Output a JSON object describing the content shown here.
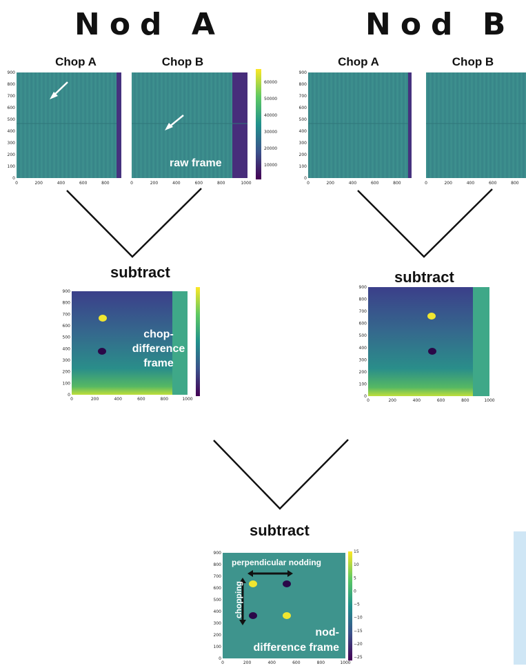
{
  "nod_a_title": "Nod A",
  "nod_b_title": "Nod B",
  "chop_a_label": "Chop A",
  "chop_b_label": "Chop B",
  "subtract_label": "subtract",
  "raw_frame_label": "raw frame",
  "chop_diff_label": [
    "chop-",
    "difference",
    "frame"
  ],
  "nod_diff_label": [
    "nod-",
    "difference frame"
  ],
  "perpendicular_label": "perpendicular nodding",
  "chopping_label": "chopping",
  "raw_y_ticks": [
    "0",
    "100",
    "200",
    "300",
    "400",
    "500",
    "600",
    "700",
    "800",
    "900"
  ],
  "raw_x_ticks_short": [
    "0",
    "200",
    "400",
    "600",
    "800"
  ],
  "raw_x_ticks_long": [
    "0",
    "200",
    "400",
    "600",
    "800",
    "1000"
  ],
  "raw_colorbar_ticks": [
    "10000",
    "20000",
    "30000",
    "40000",
    "50000",
    "60000"
  ],
  "diff_colorbar_ticks": [
    "15",
    "10",
    "5",
    "0",
    "−5",
    "−10",
    "−15",
    "−20",
    "−25"
  ],
  "colors": {
    "viridis_dark": "#440154",
    "viridis_mid": "#21918c",
    "viridis_field": "#3b8f8a",
    "viridis_yellow": "#fde725"
  }
}
